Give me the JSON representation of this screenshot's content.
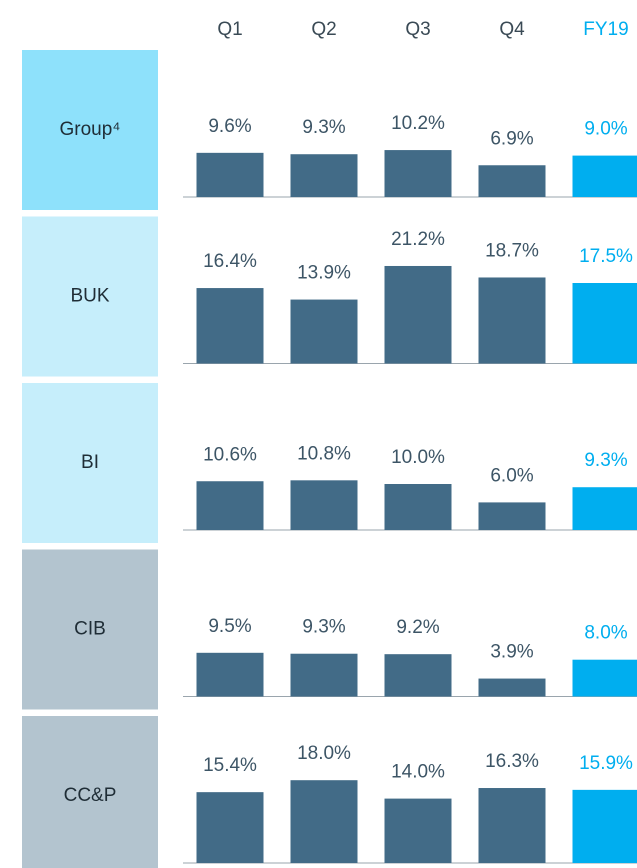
{
  "chart_data": {
    "type": "bar",
    "categories": [
      "Q1",
      "Q2",
      "Q3",
      "Q4",
      "FY19"
    ],
    "colors": [
      "#426b87",
      "#426b87",
      "#426b87",
      "#426b87",
      "#00aeef"
    ],
    "ylim": [
      0,
      25
    ],
    "series": [
      {
        "name": "Group⁴",
        "color": "#8ee1fb",
        "values": [
          9.6,
          9.3,
          10.2,
          6.9,
          9.0
        ],
        "value_labels": [
          "9.6%",
          "9.3%",
          "10.2%",
          "6.9%",
          "9.0%"
        ]
      },
      {
        "name": "BUK",
        "color": "#c6eefb",
        "values": [
          16.4,
          13.9,
          21.2,
          18.7,
          17.5
        ],
        "value_labels": [
          "16.4%",
          "13.9%",
          "21.2%",
          "18.7%",
          "17.5%"
        ]
      },
      {
        "name": "BI",
        "color": "#c6eefb",
        "values": [
          10.6,
          10.8,
          10.0,
          6.0,
          9.3
        ],
        "value_labels": [
          "10.6%",
          "10.8%",
          "10.0%",
          "6.0%",
          "9.3%"
        ]
      },
      {
        "name": "CIB",
        "color": "#b3c4cf",
        "values": [
          9.5,
          9.3,
          9.2,
          3.9,
          8.0
        ],
        "value_labels": [
          "9.5%",
          "9.3%",
          "9.2%",
          "3.9%",
          "8.0%"
        ]
      },
      {
        "name": "CC&P",
        "color": "#b3c4cf",
        "values": [
          15.4,
          18.0,
          14.0,
          16.3,
          15.9
        ],
        "value_labels": [
          "15.4%",
          "18.0%",
          "14.0%",
          "16.3%",
          "15.9%"
        ]
      }
    ]
  }
}
